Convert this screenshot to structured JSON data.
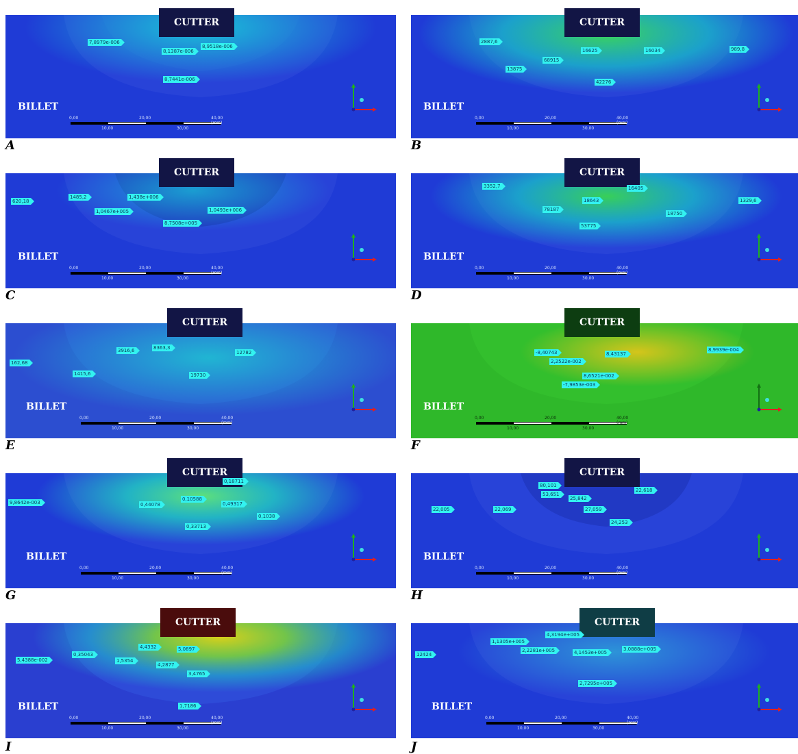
{
  "common": {
    "cutter_label": "CUTTER",
    "billet_label": "BILLET",
    "scale_ticks_top": [
      "0,00",
      "20,00",
      "40,00 (mm)"
    ],
    "scale_ticks_bottom": [
      "10,00",
      "30,00"
    ]
  },
  "panels": [
    {
      "id": "A",
      "bg": "#1f3bd6",
      "field": "#18c8d8",
      "cutter_color": "#121545",
      "labels": [
        "7,8979e-006",
        "8,1387e-006",
        "8,9518e-006",
        "8,7441e-006"
      ]
    },
    {
      "id": "B",
      "bg": "#1f3bd6",
      "field": "#3bd35a",
      "cutter_color": "#121545",
      "labels": [
        "2887,6",
        "16625",
        "16034",
        "989,8",
        "68915",
        "13875",
        "42276"
      ]
    },
    {
      "id": "C",
      "bg": "#1f3bd6",
      "field": "#18c8d8",
      "cutter_color": "#121545",
      "labels": [
        "620,18",
        "1485,2",
        "1,438e+006",
        "1,0467e+005",
        "1,0493e+006",
        "8,7508e+005"
      ]
    },
    {
      "id": "D",
      "bg": "#1f3bd6",
      "field": "#38cf58",
      "cutter_color": "#121545",
      "labels": [
        "3352,7",
        "16405",
        "18643",
        "1329,6",
        "78187",
        "18750",
        "53775"
      ]
    },
    {
      "id": "E",
      "bg": "#2c4ed0",
      "field": "#1ec6d2",
      "cutter_color": "#121545",
      "labels": [
        "162,68",
        "3916,6",
        "8363,3",
        "12782",
        "1415,6",
        "19730"
      ]
    },
    {
      "id": "F",
      "bg": "#2fb82a",
      "field": "#d4c51b",
      "cutter_color": "#0d3d11",
      "labels": [
        "-8,40743",
        "8,43137",
        "8,9939e-004",
        "2,2522e-002",
        "8,6521e-002",
        "-7,9853e-003"
      ]
    },
    {
      "id": "G",
      "bg": "#1f3bd6",
      "field": "#20cfc0",
      "cutter_color": "#121545",
      "labels": [
        "0,18711",
        "9,8642e-003",
        "0,10588",
        "0,44078",
        "0,49317",
        "0,1038",
        "0,33713"
      ]
    },
    {
      "id": "H",
      "bg": "#1f3bd6",
      "field": "#1f3bd6",
      "cutter_color": "#121545",
      "labels": [
        "80,101",
        "53,651",
        "25,842",
        "22,618",
        "22,005",
        "22,069",
        "27,059",
        "24,253"
      ]
    },
    {
      "id": "I",
      "bg": "#2a3fd0",
      "field": "#d8d01a",
      "cutter_color": "#4a0c0c",
      "labels": [
        "4,4332",
        "5,0897",
        "5,4388e-002",
        "0,35043",
        "1,5354",
        "4,2877",
        "3,4765",
        "1,7186"
      ]
    },
    {
      "id": "J",
      "bg": "#1f3bd6",
      "field": "#2ea8d8",
      "cutter_color": "#0f3d45",
      "labels": [
        "4,3194e+005",
        "1,1305e+005",
        "2,2281e+005",
        "4,1453e+005",
        "3,0888e+005",
        "12424",
        "2,7295e+005"
      ]
    }
  ]
}
